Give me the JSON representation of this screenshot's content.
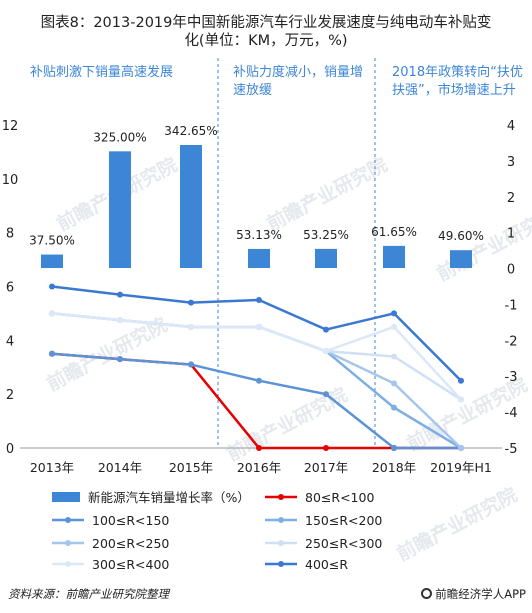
{
  "title_line1": "图表8：2013-2019年中国新能源汽车行业发展速度与纯电动车补贴变",
  "title_line2": "化(单位：KM，万元，%)",
  "phases": [
    {
      "text": "补贴刺激下销量高速发展"
    },
    {
      "text": "补贴力度减小，销量增速放缓"
    },
    {
      "text": "2018年政策转向“扶优扶强”，市场增速上升"
    }
  ],
  "source": "资料来源：前瞻产业研究院整理",
  "brand": "前瞻经济学人APP",
  "watermark": "前瞻产业研究院",
  "chart_data": {
    "type": "bar+line",
    "categories": [
      "2013年",
      "2014年",
      "2015年",
      "2016年",
      "2017年",
      "2018年",
      "2019年H1"
    ],
    "left_axis": {
      "ylim": [
        0,
        12
      ],
      "ticks": [
        0,
        2,
        4,
        6,
        8,
        10,
        12
      ]
    },
    "right_axis": {
      "ylim": [
        -5,
        4
      ],
      "ticks": [
        -5,
        -4,
        -3,
        -2,
        -1,
        0,
        1,
        2,
        3,
        4
      ]
    },
    "bars": {
      "name": "新能源汽车销量增长率（%）",
      "color": "#3d86d6",
      "values": [
        37.5,
        325.0,
        342.65,
        53.13,
        53.25,
        61.65,
        49.6
      ],
      "labels": [
        "37.50%",
        "325.00%",
        "342.65%",
        "53.13%",
        "53.25%",
        "61.65%",
        "49.60%"
      ]
    },
    "series": [
      {
        "name": "80≤R<100",
        "color": "#e60000",
        "values": [
          3.5,
          3.3,
          3.1,
          0,
          0,
          0,
          0
        ]
      },
      {
        "name": "100≤R<150",
        "color": "#5b93d8",
        "values": [
          3.5,
          3.3,
          3.1,
          2.5,
          2.0,
          0,
          0
        ]
      },
      {
        "name": "150≤R<200",
        "color": "#7eaee2",
        "values": [
          5.0,
          4.75,
          4.5,
          4.5,
          3.6,
          1.5,
          0
        ]
      },
      {
        "name": "200≤R<250",
        "color": "#a5c6ec",
        "values": [
          5.0,
          4.75,
          4.5,
          4.5,
          3.6,
          2.4,
          0
        ]
      },
      {
        "name": "250≤R<300",
        "color": "#cfe0f5",
        "values": [
          5.0,
          4.75,
          4.5,
          4.5,
          3.6,
          3.4,
          1.8
        ]
      },
      {
        "name": "300≤R<400",
        "color": "#dce8f8",
        "values": [
          5.0,
          4.75,
          4.5,
          4.5,
          3.6,
          4.5,
          1.8
        ]
      },
      {
        "name": "400≤R",
        "color": "#3a78d2",
        "values": [
          6.0,
          5.7,
          5.4,
          5.5,
          4.4,
          5.0,
          2.5
        ]
      }
    ]
  }
}
